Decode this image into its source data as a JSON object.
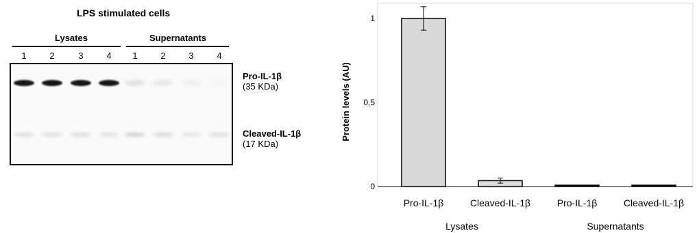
{
  "blot": {
    "title": "LPS stimulated cells",
    "groups": {
      "lysates": "Lysates",
      "supernatants": "Supernatants"
    },
    "lanes": [
      "1",
      "2",
      "3",
      "4",
      "1",
      "2",
      "3",
      "4"
    ],
    "bands": {
      "pro": {
        "name": "Pro-IL-1β",
        "size": "(35 KDa)",
        "intensity": [
          0.95,
          0.95,
          0.95,
          0.95,
          0.12,
          0.1,
          0.06,
          0.04
        ]
      },
      "cleaved": {
        "name": "Cleaved-IL-1β",
        "size": "(17 KDa)",
        "intensity": [
          0.14,
          0.13,
          0.14,
          0.12,
          0.18,
          0.16,
          0.1,
          0.14
        ]
      }
    }
  },
  "chart_data": {
    "type": "bar",
    "categories": [
      "Pro-IL-1β",
      "Cleaved-IL-1β",
      "Pro-IL-1β",
      "Cleaved-IL-1β"
    ],
    "groups": [
      {
        "label": "Lysates",
        "categories": [
          "Pro-IL-1β",
          "Cleaved-IL-1β"
        ]
      },
      {
        "label": "Supernatants",
        "categories": [
          "Pro-IL-1β",
          "Cleaved-IL-1β"
        ]
      }
    ],
    "values": [
      1.0,
      0.035,
      0.005,
      0.006
    ],
    "errors": [
      0.07,
      0.015,
      0.0,
      0.0
    ],
    "bar_colors": [
      "#d9d9d9",
      "#d9d9d9",
      "#000000",
      "#000000"
    ],
    "xlabel": "",
    "ylabel": "Protein levels (AU)",
    "ylim": [
      0,
      1.1
    ],
    "yticks": [
      0,
      0.5,
      1
    ],
    "ytick_labels": [
      "0",
      "0,5",
      "1"
    ],
    "grid": false,
    "legend": "none"
  }
}
